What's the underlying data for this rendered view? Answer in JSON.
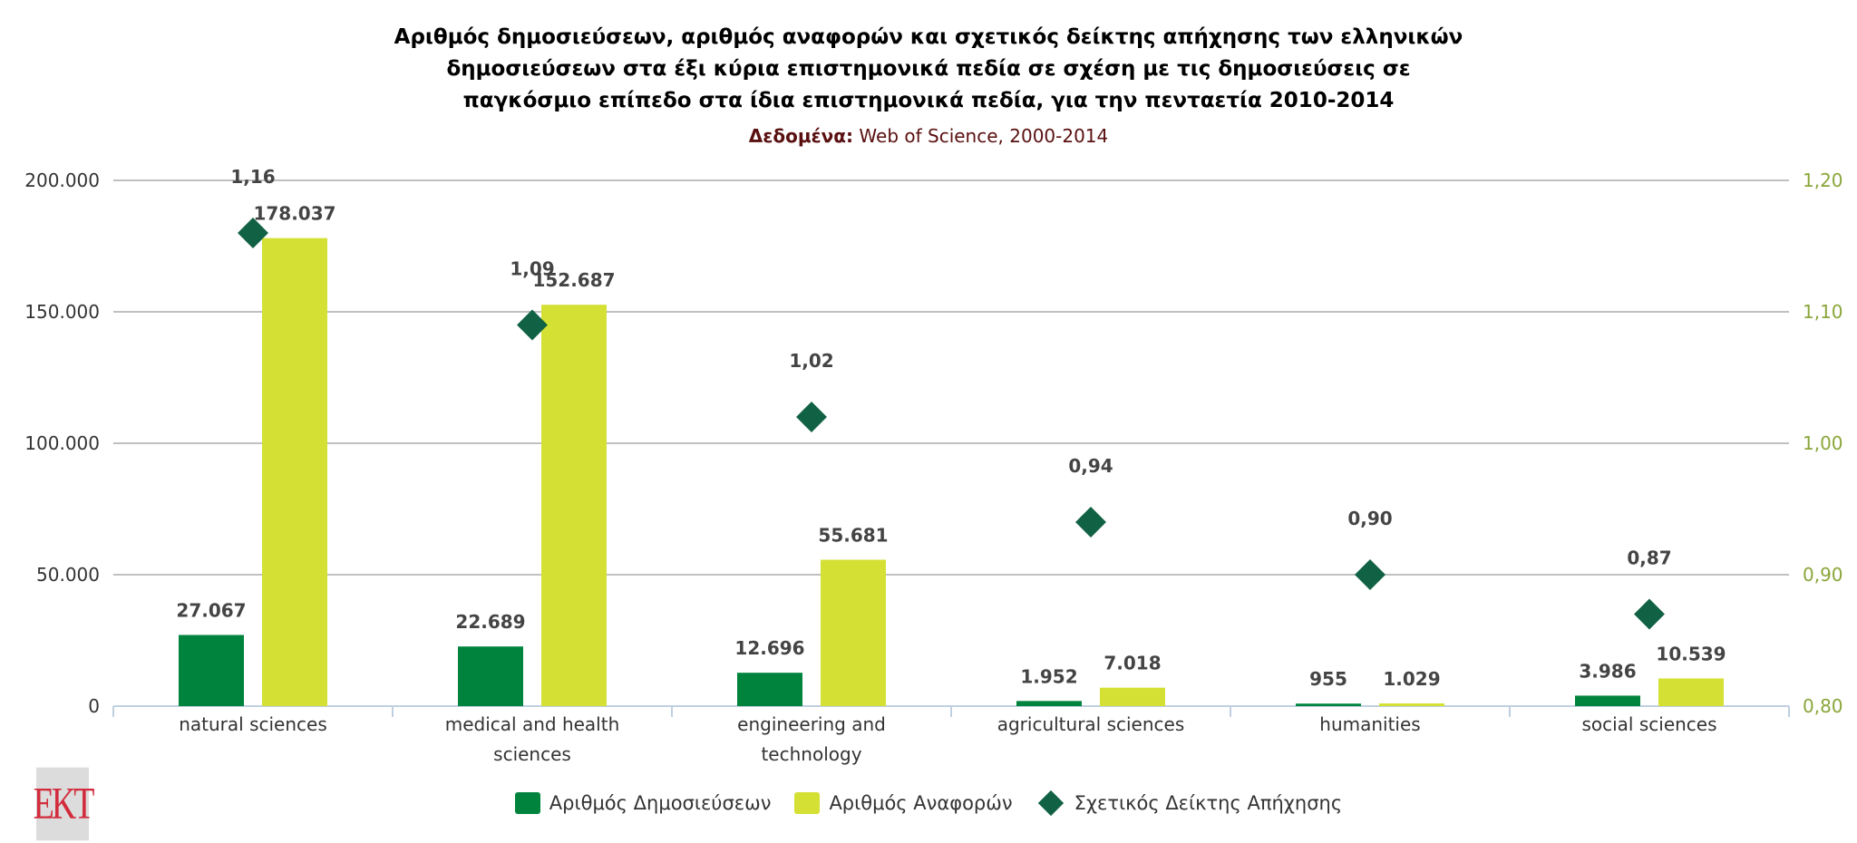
{
  "title_lines": [
    "Αριθμός δημοσιεύσεων, αριθμός αναφορών και σχετικός δείκτης απήχησης των ελληνικών",
    "δημοσιεύσεων στα έξι κύρια επιστημονικά πεδία σε σχέση με τις δημοσιεύσεις σε",
    "παγκόσμιο επίπεδο στα ίδια επιστημονικά πεδία, για την πενταετία 2010-2014"
  ],
  "subtitle_label": "Δεδομένα:",
  "subtitle_text": " Web of Science, 2000-2014",
  "logo_text": "EKT",
  "chart_data": {
    "type": "bar",
    "categories": [
      [
        "natural sciences"
      ],
      [
        "medical and health",
        "sciences"
      ],
      [
        "engineering and",
        "technology"
      ],
      [
        "agricultural sciences"
      ],
      [
        "humanities"
      ],
      [
        "social sciences"
      ]
    ],
    "series": [
      {
        "name": "Αριθμός Δημοσιεύσεων",
        "type": "bar",
        "axis": "left",
        "color": "#00843d",
        "values": [
          27067,
          22689,
          12696,
          1952,
          955,
          3986
        ],
        "labels": [
          "27.067",
          "22.689",
          "12.696",
          "1.952",
          "955",
          "3.986"
        ]
      },
      {
        "name": "Αριθμός Αναφορών",
        "type": "bar",
        "axis": "left",
        "color": "#d4e033",
        "values": [
          178037,
          152687,
          55681,
          7018,
          1029,
          10539
        ],
        "labels": [
          "178.037",
          "152.687",
          "55.681",
          "7.018",
          "1.029",
          "10.539"
        ]
      },
      {
        "name": "Σχετικός Δείκτης Απήχησης",
        "type": "scatter",
        "axis": "right",
        "color": "#116244",
        "values": [
          1.16,
          1.09,
          1.02,
          0.94,
          0.9,
          0.87
        ],
        "labels": [
          "1,16",
          "1,09",
          "1,02",
          "0,94",
          "0,90",
          "0,87"
        ]
      }
    ],
    "y_left": {
      "range": [
        0,
        200000
      ],
      "ticks": [
        "0",
        "50.000",
        "100.000",
        "150.000",
        "200.000"
      ]
    },
    "y_right": {
      "range": [
        0.8,
        1.2
      ],
      "ticks": [
        "0,80",
        "0,90",
        "1,00",
        "1,10",
        "1,20"
      ],
      "color": "#8aa63a"
    },
    "grid": true,
    "legend_position": "bottom"
  }
}
